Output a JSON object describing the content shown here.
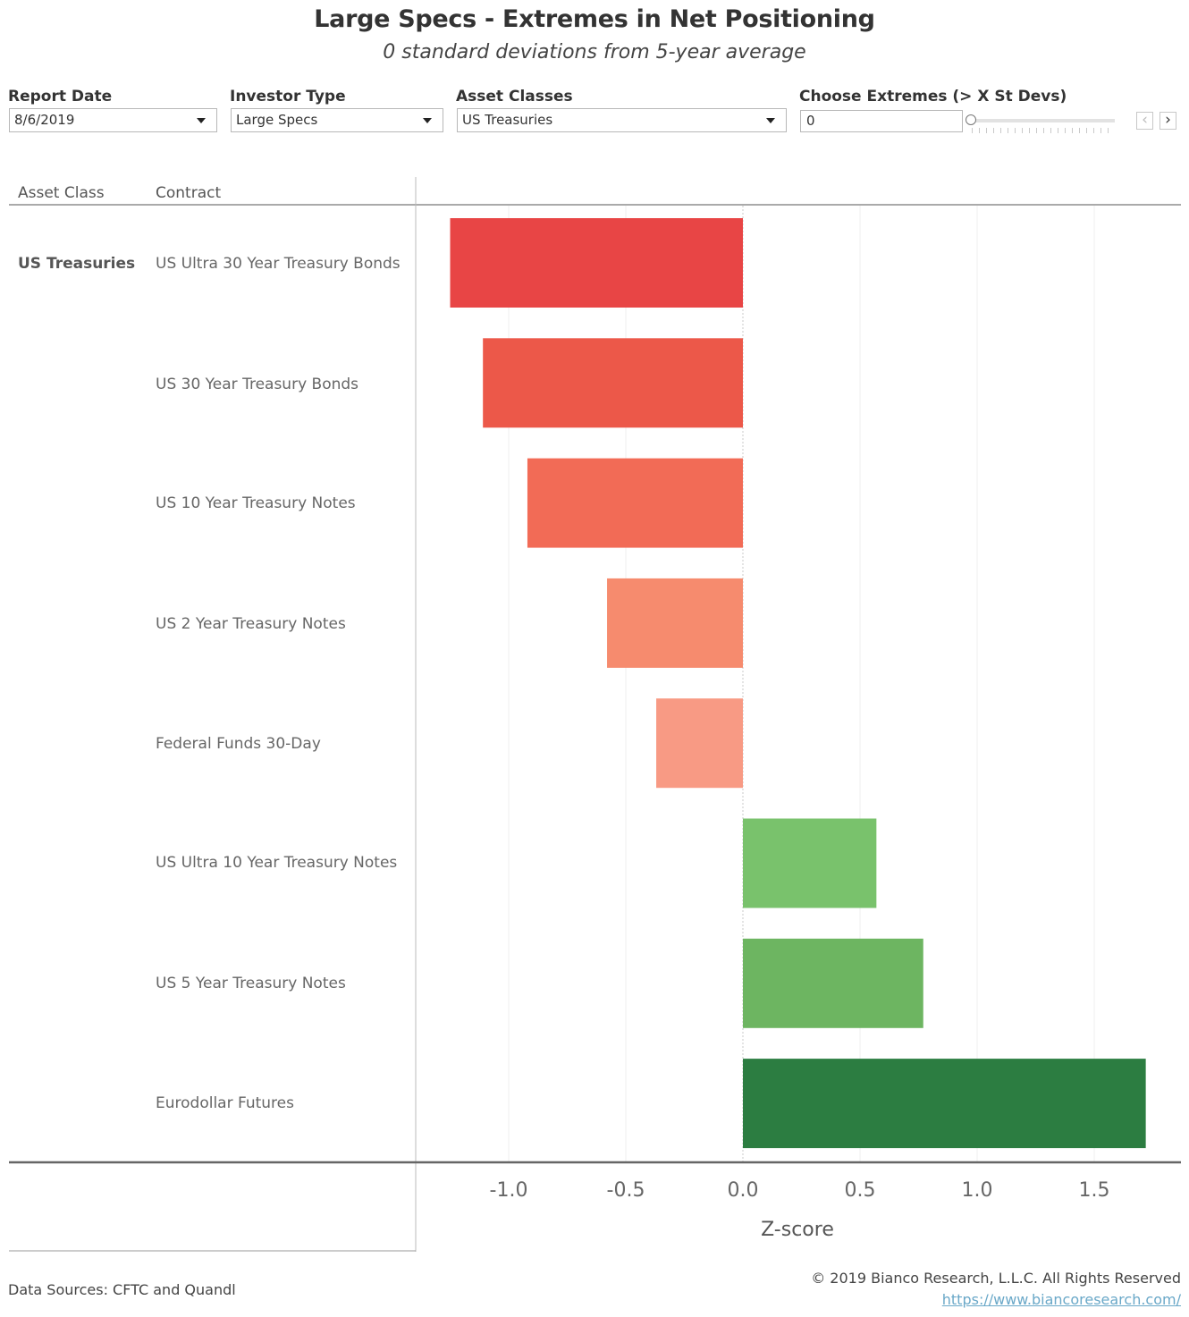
{
  "header": {
    "title": "Large Specs - Extremes in Net Positioning",
    "subtitle": "0 standard deviations from 5-year average"
  },
  "filters": {
    "report_date": {
      "label": "Report Date",
      "value": "8/6/2019"
    },
    "investor_type": {
      "label": "Investor Type",
      "value": "Large Specs"
    },
    "asset_classes": {
      "label": "Asset Classes",
      "value": "US Treasuries"
    },
    "extremes": {
      "label": "Choose Extremes (> X St Devs)",
      "value": "0"
    }
  },
  "table": {
    "col_asset_class": "Asset Class",
    "col_contract": "Contract",
    "group": "US Treasuries"
  },
  "colors": {
    "neg_strong": "#e84545",
    "neg_medium": "#ec5849",
    "neg_light": "#f26b56",
    "neg_lighter": "#f68b6e",
    "neg_lightest": "#f89a84",
    "pos_light": "#79c26c",
    "pos_medium": "#6db561",
    "pos_dark": "#2c7d41"
  },
  "chart_data": {
    "type": "bar",
    "orientation": "horizontal",
    "categories": [
      "US Ultra 30 Year Treasury Bonds",
      "US 30 Year Treasury Bonds",
      "US 10 Year Treasury Notes",
      "US 2 Year Treasury Notes",
      "Federal Funds 30-Day",
      "US Ultra 10 Year Treasury Notes",
      "US 5 Year Treasury Notes",
      "Eurodollar Futures"
    ],
    "values": [
      -1.25,
      -1.11,
      -0.92,
      -0.58,
      -0.37,
      0.57,
      0.77,
      1.72
    ],
    "bar_colors": [
      "#e84545",
      "#ec5849",
      "#f26b56",
      "#f68b6e",
      "#f89a84",
      "#79c26c",
      "#6db561",
      "#2c7d41"
    ],
    "xlabel": "Z-score",
    "xlim": [
      -1.4,
      1.8
    ],
    "xticks": [
      "-1.0",
      "-0.5",
      "0.0",
      "0.5",
      "1.0",
      "1.5"
    ],
    "xtick_values": [
      -1.0,
      -0.5,
      0.0,
      0.5,
      1.0,
      1.5
    ],
    "grid": true
  },
  "footer": {
    "sources": "Data Sources: CFTC and Quandl",
    "copyright": "© 2019 Bianco Research, L.L.C. All Rights Reserved",
    "url": "https://www.biancoresearch.com/"
  }
}
